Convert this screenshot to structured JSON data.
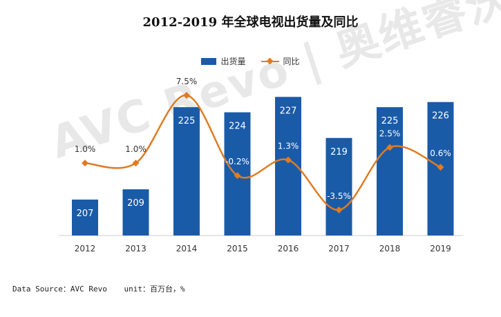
{
  "title": "2012-2019 年全球电视出货量及同比",
  "legend": {
    "bar_label": "出货量",
    "line_label": "同比"
  },
  "colors": {
    "bar": "#1a5ba8",
    "line": "#e07b22",
    "bar_label": "#ffffff",
    "axis": "#cccccc",
    "text": "#333333"
  },
  "watermark": "AVC Revo | 奥维睿沃",
  "footer": {
    "source": "Data Source：AVC Revo",
    "unit": "unit：百万台，%"
  },
  "chart_data": {
    "type": "bar",
    "categories": [
      "2012",
      "2013",
      "2014",
      "2015",
      "2016",
      "2017",
      "2018",
      "2019"
    ],
    "series": [
      {
        "name": "出货量",
        "type": "bar",
        "values": [
          207,
          209,
          225,
          224,
          227,
          219,
          225,
          226
        ]
      },
      {
        "name": "同比",
        "type": "line",
        "values": [
          1.0,
          1.0,
          7.5,
          -0.2,
          1.3,
          -3.5,
          2.5,
          0.6
        ],
        "labels": [
          "1.0%",
          "1.0%",
          "7.5%",
          "-0.2%",
          "1.3%",
          "-3.5%",
          "2.5%",
          "0.6%"
        ]
      }
    ],
    "title": "2012-2019 年全球电视出货量及同比",
    "xlabel": "",
    "ylabel": "",
    "grid": false,
    "legend_position": "top"
  }
}
